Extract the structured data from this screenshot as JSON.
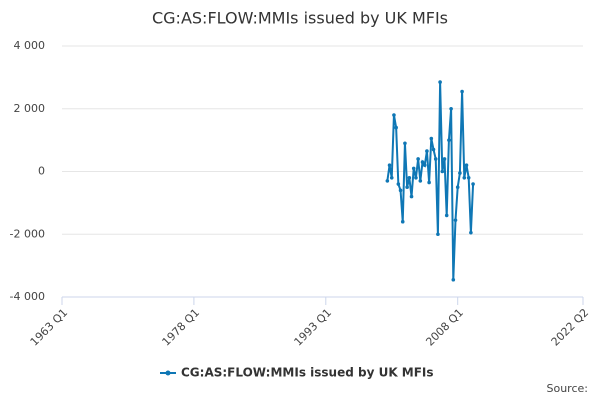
{
  "chart_data": {
    "type": "line",
    "title": "CG:AS:FLOW:MMIs issued by UK MFIs",
    "x": [
      2000,
      2000.25,
      2000.5,
      2000.75,
      2001,
      2001.25,
      2001.5,
      2001.75,
      2002,
      2002.25,
      2002.5,
      2002.75,
      2003,
      2003.25,
      2003.5,
      2003.75,
      2004,
      2004.25,
      2004.5,
      2004.75,
      2005,
      2005.25,
      2005.5,
      2005.75,
      2006,
      2006.25,
      2006.5,
      2006.75,
      2007,
      2007.25,
      2007.5,
      2007.75,
      2008,
      2008.25,
      2008.5,
      2008.75,
      2009,
      2009.25,
      2009.5,
      2009.75
    ],
    "series": [
      {
        "name": "CG:AS:FLOW:MMIs issued by UK MFIs",
        "color": "#0f77b5",
        "values": [
          -300,
          200,
          -200,
          1800,
          1400,
          -400,
          -600,
          -1600,
          900,
          -500,
          -200,
          -800,
          100,
          -200,
          400,
          -300,
          300,
          200,
          650,
          -350,
          1050,
          700,
          400,
          -2000,
          2850,
          0,
          400,
          -1400,
          1000,
          2000,
          -3450,
          -1550,
          -500,
          -50,
          2550,
          -200,
          200,
          -200,
          -1950,
          -400
        ]
      }
    ],
    "xlim": [
      1963,
      2022.25
    ],
    "xticks": [
      {
        "value": 1963,
        "label": "1963 Q1"
      },
      {
        "value": 1978,
        "label": "1978 Q1"
      },
      {
        "value": 1993,
        "label": "1993 Q1"
      },
      {
        "value": 2008,
        "label": "2008 Q1"
      },
      {
        "value": 2022.25,
        "label": "2022 Q2"
      }
    ],
    "ylim": [
      -4000,
      4000
    ],
    "yticks": [
      {
        "value": -4000,
        "label": "-4 000"
      },
      {
        "value": -2000,
        "label": "-2 000"
      },
      0,
      {
        "value": 2000,
        "label": "2 000"
      },
      {
        "value": 4000,
        "label": "4 000"
      }
    ],
    "grid": true,
    "source": "Source:"
  }
}
